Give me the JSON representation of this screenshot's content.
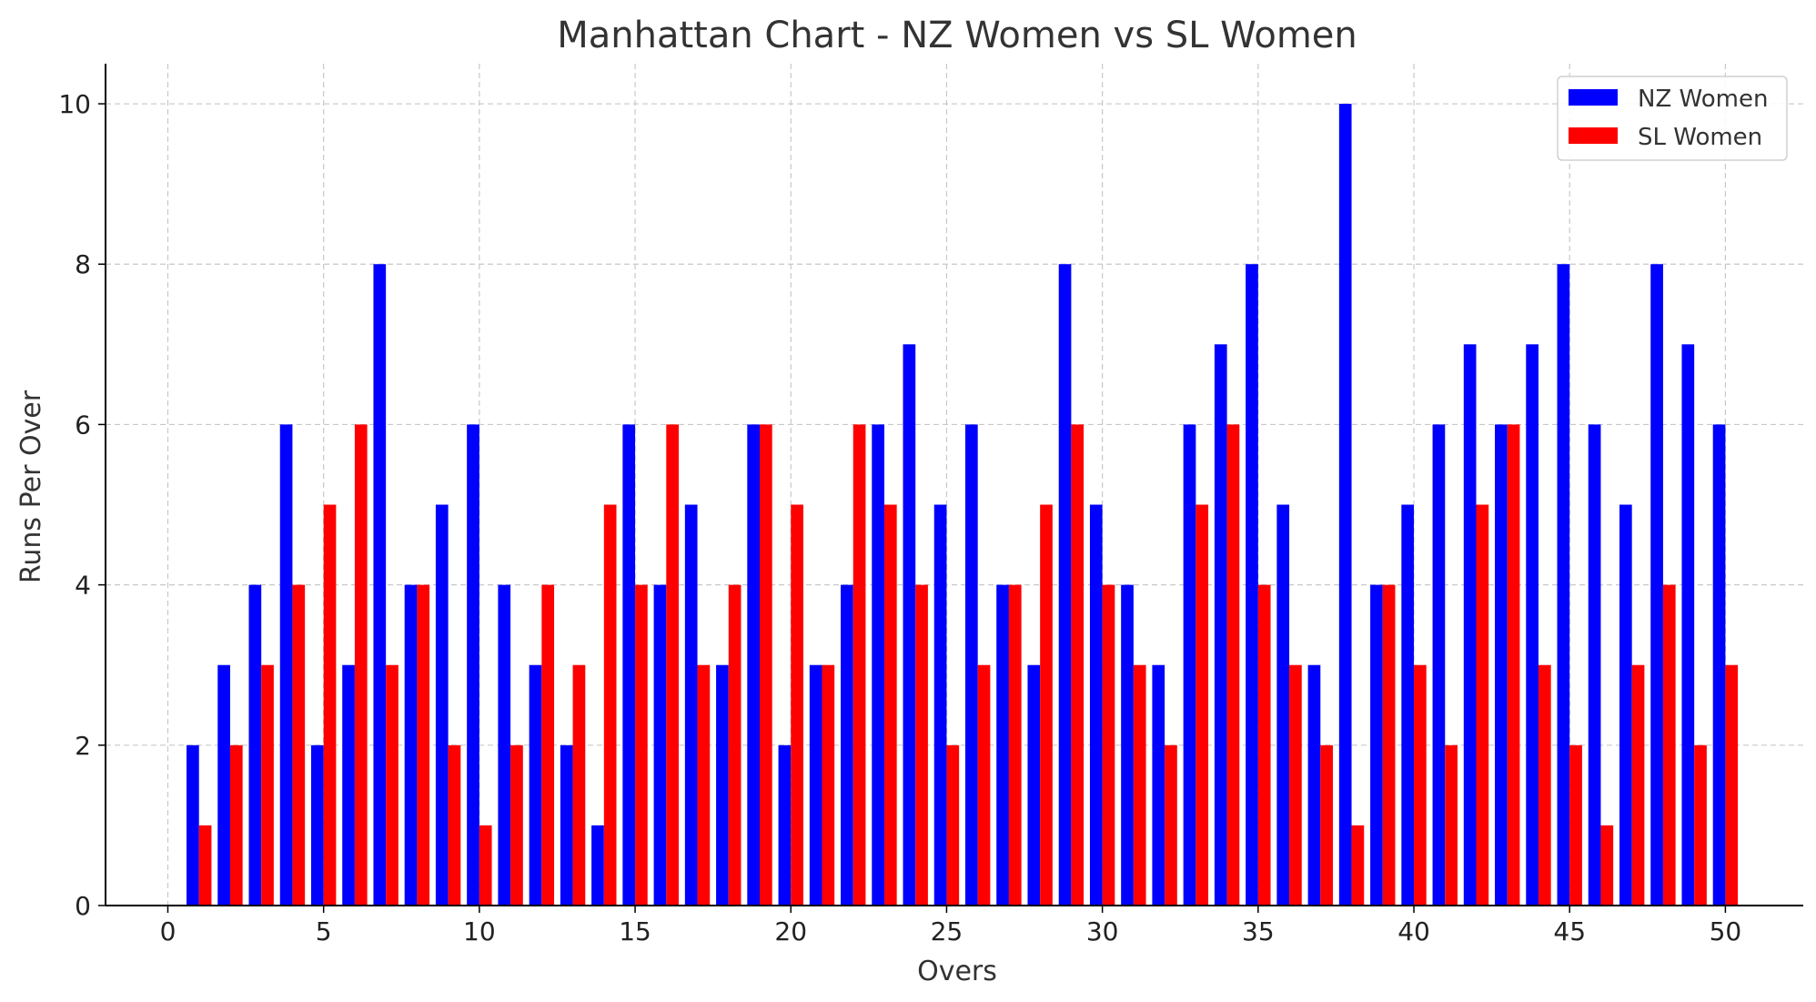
{
  "chart_data": {
    "type": "bar",
    "title": "Manhattan Chart - NZ Women vs SL Women",
    "xlabel": "Overs",
    "ylabel": "Runs Per Over",
    "xlim": [
      -2,
      52.5
    ],
    "ylim": [
      0,
      10.5
    ],
    "xticks": [
      0,
      5,
      10,
      15,
      20,
      25,
      30,
      35,
      40,
      45,
      50
    ],
    "yticks": [
      0,
      2,
      4,
      6,
      8,
      10
    ],
    "grid": true,
    "legend_position": "top-right",
    "x": [
      1,
      2,
      3,
      4,
      5,
      6,
      7,
      8,
      9,
      10,
      11,
      12,
      13,
      14,
      15,
      16,
      17,
      18,
      19,
      20,
      21,
      22,
      23,
      24,
      25,
      26,
      27,
      28,
      29,
      30,
      31,
      32,
      33,
      34,
      35,
      36,
      37,
      38,
      39,
      40,
      41,
      42,
      43,
      44,
      45,
      46,
      47,
      48,
      49,
      50
    ],
    "series": [
      {
        "name": "NZ Women",
        "color": "#0000ff",
        "values": [
          2,
          3,
          4,
          6,
          2,
          3,
          8,
          4,
          5,
          6,
          4,
          3,
          2,
          1,
          6,
          4,
          5,
          3,
          6,
          2,
          3,
          4,
          6,
          7,
          5,
          6,
          4,
          3,
          8,
          5,
          4,
          3,
          6,
          7,
          8,
          5,
          3,
          10,
          4,
          5,
          6,
          7,
          6,
          7,
          8,
          6,
          5,
          8,
          7,
          6
        ]
      },
      {
        "name": "SL Women",
        "color": "#ff0000",
        "values": [
          1,
          2,
          3,
          4,
          5,
          6,
          3,
          4,
          2,
          1,
          2,
          4,
          3,
          5,
          4,
          6,
          3,
          4,
          6,
          5,
          3,
          6,
          5,
          4,
          2,
          3,
          4,
          5,
          6,
          4,
          3,
          2,
          5,
          6,
          4,
          3,
          2,
          1,
          4,
          3,
          2,
          5,
          6,
          3,
          2,
          1,
          3,
          4,
          2,
          3
        ]
      }
    ]
  }
}
